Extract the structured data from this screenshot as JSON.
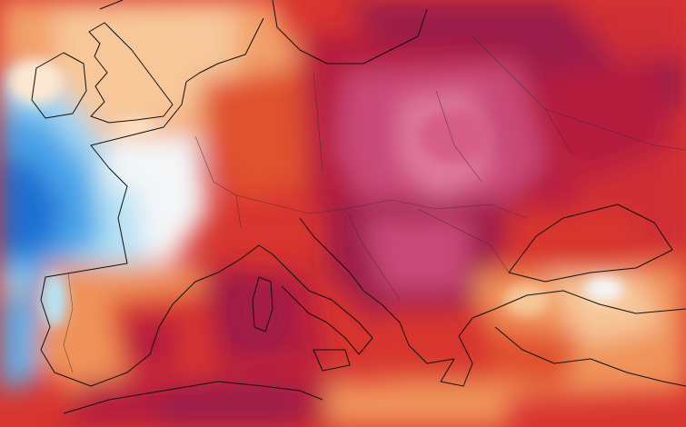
{
  "map": {
    "kind": "temperature-anomaly-heatmap",
    "region": "Europe",
    "palette": {
      "coldest": "#1f6fd1",
      "cold": "#4aa3e8",
      "cool": "#9fd6f2",
      "near_zero": "#f4f6f8",
      "warm_light": "#f7c79a",
      "warm": "#f0935a",
      "hot": "#e0512f",
      "hotter": "#cf2f35",
      "very_hot": "#b51f3e",
      "extreme": "#9b1d4a",
      "extreme_pink": "#c94a77",
      "peak_pink": "#e07a9f"
    },
    "coastline_color": "#111111",
    "border_color": "#3a2a2a"
  }
}
